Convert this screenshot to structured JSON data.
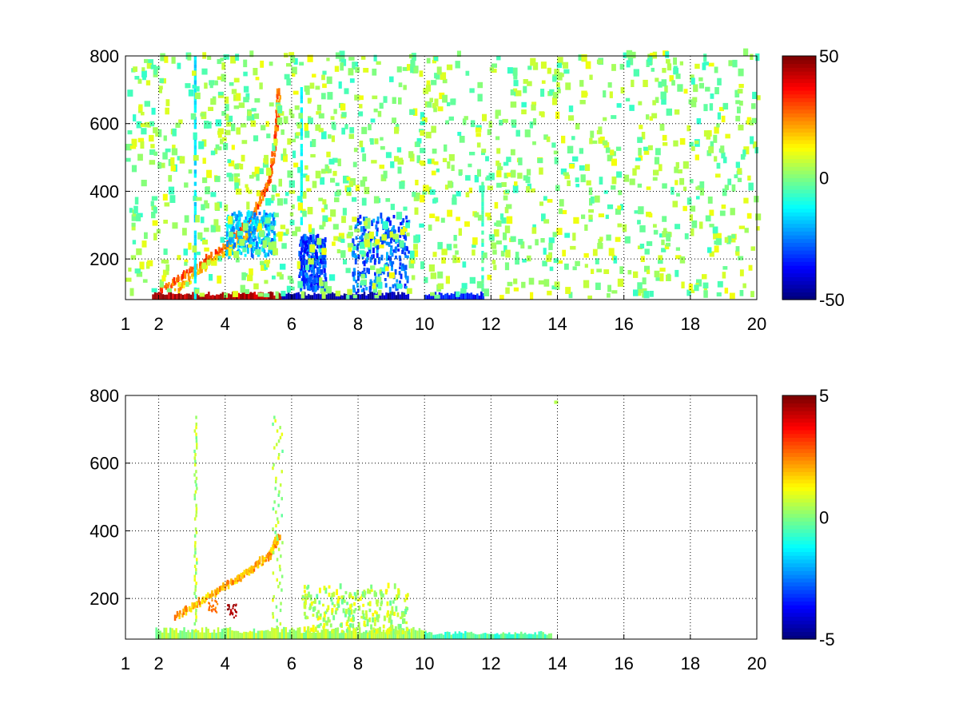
{
  "chart_data": [
    {
      "type": "heatmap",
      "title": "",
      "xlabel": "",
      "ylabel": "",
      "xlim": [
        1,
        20
      ],
      "ylim": [
        80,
        800
      ],
      "x_ticks": [
        1,
        2,
        4,
        6,
        8,
        10,
        12,
        14,
        16,
        18,
        20
      ],
      "y_ticks": [
        200,
        400,
        600,
        800
      ],
      "grid": true,
      "colormap": "jet",
      "colorbar": {
        "range": [
          -50,
          50
        ],
        "ticks": [
          50,
          0,
          -50
        ],
        "tick_labels": [
          "50",
          "0",
          "-50"
        ]
      },
      "background": "#ffffff",
      "features": [
        {
          "kind": "hot_band",
          "x": [
            1.8,
            5.7
          ],
          "y": [
            80,
            100
          ],
          "value": 45
        },
        {
          "kind": "cold_band",
          "x": [
            5.7,
            9.5
          ],
          "y": [
            80,
            100
          ],
          "value": -45
        },
        {
          "kind": "cold_band",
          "x": [
            10.0,
            11.8
          ],
          "y": [
            80,
            100
          ],
          "value": -35
        },
        {
          "kind": "ridge",
          "points": [
            [
              2.0,
              100
            ],
            [
              3.0,
              160
            ],
            [
              4.0,
              230
            ],
            [
              4.8,
              320
            ],
            [
              5.3,
              420
            ],
            [
              5.5,
              550
            ],
            [
              5.6,
              700
            ]
          ],
          "value": 25
        },
        {
          "kind": "ridge",
          "points": [
            [
              2.5,
              100
            ],
            [
              3.5,
              180
            ],
            [
              4.5,
              250
            ],
            [
              5.3,
              320
            ]
          ],
          "value": 15
        },
        {
          "kind": "cold_patch",
          "x": [
            4.0,
            5.5
          ],
          "y": [
            200,
            330
          ],
          "value": -20
        },
        {
          "kind": "cold_patch",
          "x": [
            6.2,
            7.0
          ],
          "y": [
            100,
            260
          ],
          "value": -30
        },
        {
          "kind": "cold_patch",
          "x": [
            7.8,
            9.5
          ],
          "y": [
            100,
            320
          ],
          "value": -28
        },
        {
          "kind": "stripe",
          "x": 11.75,
          "y": [
            80,
            420
          ],
          "value": -5
        },
        {
          "kind": "stripe",
          "x": 6.3,
          "y": [
            300,
            700
          ],
          "value": -12
        },
        {
          "kind": "stripe",
          "x": 3.1,
          "y": [
            80,
            800
          ],
          "value": -15
        },
        {
          "kind": "scatter",
          "x": [
            1,
            20
          ],
          "y": [
            80,
            800
          ],
          "value_range": [
            -8,
            12
          ]
        }
      ]
    },
    {
      "type": "heatmap",
      "title": "",
      "xlabel": "",
      "ylabel": "",
      "xlim": [
        1,
        20
      ],
      "ylim": [
        80,
        800
      ],
      "x_ticks": [
        1,
        2,
        4,
        6,
        8,
        10,
        12,
        14,
        16,
        18,
        20
      ],
      "y_ticks": [
        200,
        400,
        600,
        800
      ],
      "grid": true,
      "colormap": "jet",
      "colorbar": {
        "range": [
          -5,
          5
        ],
        "ticks": [
          5,
          0,
          -5
        ],
        "tick_labels": [
          "5",
          "0",
          "-5"
        ]
      },
      "background": "#ffffff",
      "features": [
        {
          "kind": "floor_band",
          "x": [
            1.9,
            10.0
          ],
          "y": [
            80,
            110
          ],
          "value": 0.4
        },
        {
          "kind": "floor_band",
          "x": [
            10.0,
            13.8
          ],
          "y": [
            80,
            100
          ],
          "value": -0.5
        },
        {
          "kind": "ridge",
          "points": [
            [
              2.5,
              140
            ],
            [
              3.5,
              200
            ],
            [
              4.5,
              260
            ],
            [
              5.3,
              320
            ],
            [
              5.6,
              380
            ]
          ],
          "value": 1.8
        },
        {
          "kind": "column",
          "x": [
            5.4,
            5.7
          ],
          "y": [
            100,
            740
          ],
          "value": 0.4
        },
        {
          "kind": "column",
          "x": [
            3.05,
            3.12
          ],
          "y": [
            100,
            740
          ],
          "value": 0.5
        },
        {
          "kind": "hot_spot",
          "x": 4.2,
          "y": 160,
          "value": 5
        },
        {
          "kind": "hot_spot",
          "x": 3.6,
          "y": 175,
          "value": 3
        },
        {
          "kind": "patch",
          "x": [
            6.3,
            9.5
          ],
          "y": [
            90,
            230
          ],
          "value": 0.5
        },
        {
          "kind": "point",
          "x": 13.9,
          "y": 775,
          "value": 0.5
        }
      ]
    }
  ]
}
